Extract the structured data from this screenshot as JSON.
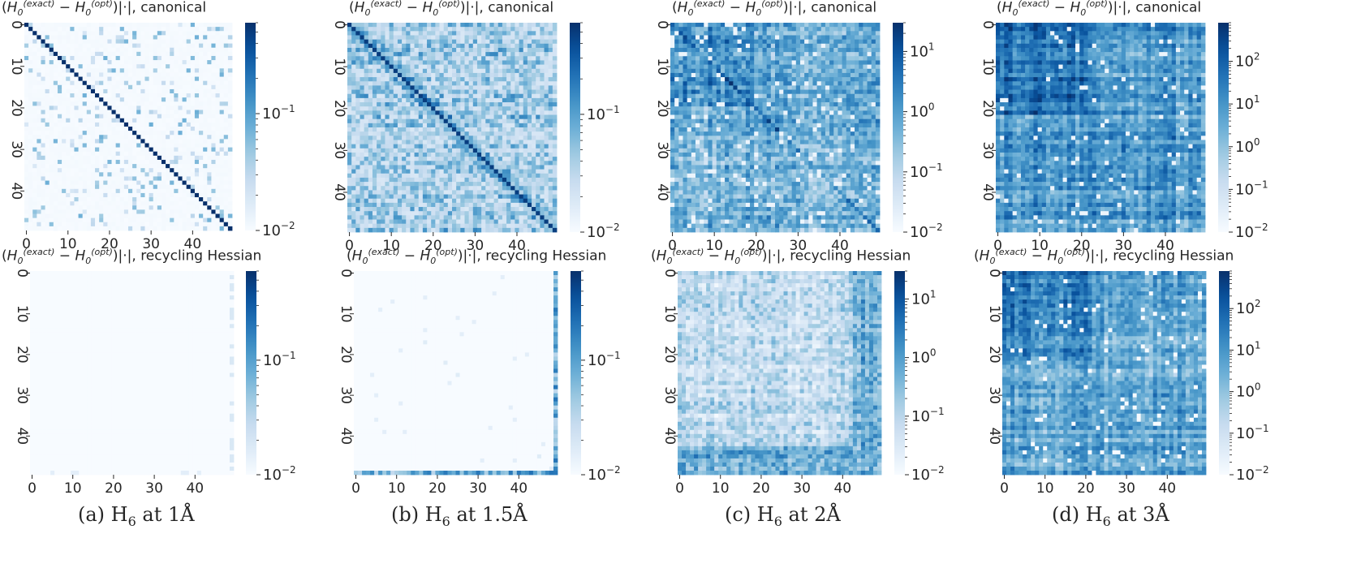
{
  "colors": {
    "cmap_low": "#f7fbff",
    "cmap_high": "#08306b"
  },
  "title_parts": {
    "open": "(",
    "H": "H",
    "zero": "0",
    "exact": "(exact)",
    "minus": " − ",
    "opt": "(opt)",
    "abs": ")|·|, "
  },
  "captions": [
    {
      "label": "(a) H",
      "sub": "6",
      "rest": " at 1Å"
    },
    {
      "label": "(b) H",
      "sub": "6",
      "rest": " at 1.5Å"
    },
    {
      "label": "(c) H",
      "sub": "6",
      "rest": " at 2Å"
    },
    {
      "label": "(d) H",
      "sub": "6",
      "rest": " at 3Å"
    }
  ],
  "chart_data": [
    {
      "type": "heatmap",
      "column": "a",
      "row": "canonical",
      "title_suffix": "canonical",
      "size": 50,
      "x_ticks": [
        "0",
        "10",
        "20",
        "30",
        "40"
      ],
      "y_ticks": [
        "0",
        "10",
        "20",
        "30",
        "40"
      ],
      "log_scale": true,
      "vmin": 0.01,
      "vmax": 0.6,
      "cbar_ticks": [
        {
          "value": 0.1,
          "base": "10",
          "exp": "−1"
        },
        {
          "value": 0.01,
          "base": "10",
          "exp": "−2"
        }
      ],
      "pattern": "diag_sparse"
    },
    {
      "type": "heatmap",
      "column": "b",
      "row": "canonical",
      "title_suffix": "canonical",
      "size": 50,
      "x_ticks": [
        "0",
        "10",
        "20",
        "30",
        "40"
      ],
      "y_ticks": [
        "0",
        "10",
        "20",
        "30",
        "40"
      ],
      "log_scale": true,
      "vmin": 0.01,
      "vmax": 0.6,
      "cbar_ticks": [
        {
          "value": 0.1,
          "base": "10",
          "exp": "−1"
        },
        {
          "value": 0.01,
          "base": "10",
          "exp": "−2"
        }
      ],
      "pattern": "diag_medium"
    },
    {
      "type": "heatmap",
      "column": "c",
      "row": "canonical",
      "title_suffix": "canonical",
      "size": 50,
      "x_ticks": [
        "0",
        "10",
        "20",
        "30",
        "40"
      ],
      "y_ticks": [
        "0",
        "10",
        "20",
        "30",
        "40"
      ],
      "log_scale": true,
      "vmin": 0.01,
      "vmax": 30,
      "cbar_ticks": [
        {
          "value": 10,
          "base": "10",
          "exp": "1"
        },
        {
          "value": 1,
          "base": "10",
          "exp": "0"
        },
        {
          "value": 0.1,
          "base": "10",
          "exp": "−1"
        },
        {
          "value": 0.01,
          "base": "10",
          "exp": "−2"
        }
      ],
      "pattern": "block_dense"
    },
    {
      "type": "heatmap",
      "column": "d",
      "row": "canonical",
      "title_suffix": "canonical",
      "size": 50,
      "x_ticks": [
        "0",
        "10",
        "20",
        "30",
        "40"
      ],
      "y_ticks": [
        "0",
        "10",
        "20",
        "30",
        "40"
      ],
      "log_scale": true,
      "vmin": 0.01,
      "vmax": 800,
      "cbar_ticks": [
        {
          "value": 100,
          "base": "10",
          "exp": "2"
        },
        {
          "value": 10,
          "base": "10",
          "exp": "1"
        },
        {
          "value": 1,
          "base": "10",
          "exp": "0"
        },
        {
          "value": 0.1,
          "base": "10",
          "exp": "−1"
        },
        {
          "value": 0.01,
          "base": "10",
          "exp": "−2"
        }
      ],
      "pattern": "very_dense"
    },
    {
      "type": "heatmap",
      "column": "a",
      "row": "recycling",
      "title_suffix": "recycling Hessian",
      "size": 50,
      "x_ticks": [
        "0",
        "10",
        "20",
        "30",
        "40"
      ],
      "y_ticks": [
        "0",
        "10",
        "20",
        "30",
        "40"
      ],
      "log_scale": true,
      "vmin": 0.01,
      "vmax": 0.6,
      "cbar_ticks": [
        {
          "value": 0.1,
          "base": "10",
          "exp": "−1"
        },
        {
          "value": 0.01,
          "base": "10",
          "exp": "−2"
        }
      ],
      "pattern": "near_zero"
    },
    {
      "type": "heatmap",
      "column": "b",
      "row": "recycling",
      "title_suffix": "recycling Hessian",
      "size": 50,
      "x_ticks": [
        "0",
        "10",
        "20",
        "30",
        "40"
      ],
      "y_ticks": [
        "0",
        "10",
        "20",
        "30",
        "40"
      ],
      "log_scale": true,
      "vmin": 0.01,
      "vmax": 0.6,
      "cbar_ticks": [
        {
          "value": 0.1,
          "base": "10",
          "exp": "−1"
        },
        {
          "value": 0.01,
          "base": "10",
          "exp": "−2"
        }
      ],
      "pattern": "edge_lines"
    },
    {
      "type": "heatmap",
      "column": "c",
      "row": "recycling",
      "title_suffix": "recycling Hessian",
      "size": 50,
      "x_ticks": [
        "0",
        "10",
        "20",
        "30",
        "40"
      ],
      "y_ticks": [
        "0",
        "10",
        "20",
        "30",
        "40"
      ],
      "log_scale": true,
      "vmin": 0.01,
      "vmax": 30,
      "cbar_ticks": [
        {
          "value": 10,
          "base": "10",
          "exp": "1"
        },
        {
          "value": 1,
          "base": "10",
          "exp": "0"
        },
        {
          "value": 0.1,
          "base": "10",
          "exp": "−1"
        },
        {
          "value": 0.01,
          "base": "10",
          "exp": "−2"
        }
      ],
      "pattern": "light_block"
    },
    {
      "type": "heatmap",
      "column": "d",
      "row": "recycling",
      "title_suffix": "recycling Hessian",
      "size": 50,
      "x_ticks": [
        "0",
        "10",
        "20",
        "30",
        "40"
      ],
      "y_ticks": [
        "0",
        "10",
        "20",
        "30",
        "40"
      ],
      "log_scale": true,
      "vmin": 0.01,
      "vmax": 800,
      "cbar_ticks": [
        {
          "value": 100,
          "base": "10",
          "exp": "2"
        },
        {
          "value": 10,
          "base": "10",
          "exp": "1"
        },
        {
          "value": 1,
          "base": "10",
          "exp": "0"
        },
        {
          "value": 0.1,
          "base": "10",
          "exp": "−1"
        },
        {
          "value": 0.01,
          "base": "10",
          "exp": "−2"
        }
      ],
      "pattern": "very_dense_b"
    }
  ]
}
